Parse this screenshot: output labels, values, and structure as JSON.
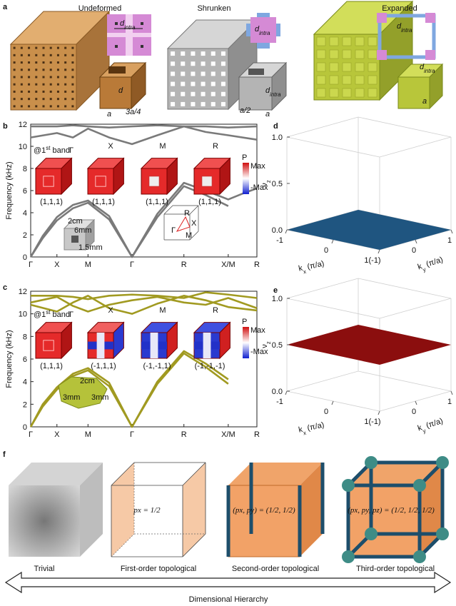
{
  "panel_letters": [
    "a",
    "b",
    "c",
    "d",
    "e",
    "f"
  ],
  "panel_a": [
    {
      "title": "Undeformed",
      "inset_label": {
        "base": "d",
        "sub": "intra"
      },
      "dims": [
        {
          "base": "d"
        },
        {
          "base": "a"
        },
        {
          "base": "3a/4"
        }
      ]
    },
    {
      "title": "Shrunken",
      "inset_label": {
        "base": "d",
        "sub": "intra"
      },
      "dims": [
        {
          "base": "d",
          "sub": "intra"
        },
        {
          "base": "a/2"
        },
        {
          "base": "a"
        }
      ]
    },
    {
      "title": "Expanded",
      "inset_label": {
        "base": "d",
        "sub": "intra"
      },
      "dims": [
        {
          "base": "d",
          "sub": "intra"
        },
        {
          "base": "a"
        }
      ]
    }
  ],
  "panel_b": {
    "band_label": {
      "base": "@1",
      "sup": "st",
      "rest": " band"
    },
    "modes": [
      {
        "point": "Γ",
        "index": "(1,1,1)"
      },
      {
        "point": "X",
        "index": "(1,1,1)"
      },
      {
        "point": "M",
        "index": "(1,1,1)"
      },
      {
        "point": "R",
        "index": "(1,1,1)"
      }
    ],
    "colorbar": {
      "title": "P",
      "max": "Max",
      "min": "-Max"
    },
    "sample": [
      "2cm",
      "6mm",
      "1.5mm"
    ],
    "brillouin_zone": [
      "R",
      "X",
      "M",
      "Γ"
    ]
  },
  "panel_c": {
    "band_label": {
      "base": "@1",
      "sup": "st",
      "rest": " band"
    },
    "modes": [
      {
        "point": "Γ",
        "index": "(1,1,1)"
      },
      {
        "point": "X",
        "index": "(-1,1,1)"
      },
      {
        "point": "M",
        "index": "(-1,-1,1)"
      },
      {
        "point": "R",
        "index": "(-1,-1,-1)"
      }
    ],
    "colorbar": {
      "title": "P",
      "max": "Max",
      "min": "-Max"
    },
    "sample": [
      "2cm",
      "3mm",
      "3mm"
    ]
  },
  "panel_f": {
    "cubes": [
      {
        "label": "Trivial"
      },
      {
        "label": "First-order topological",
        "equation": "px = 1/2"
      },
      {
        "label": "Second-order topological",
        "equation": "(px, py) = (1/2, 1/2)"
      },
      {
        "label": "Third-order topological",
        "equation": "(px, py, pz) = (1/2, 1/2, 1/2)"
      }
    ],
    "arrow_label": "Dimensional Hierarchy"
  },
  "chart_data": [
    {
      "type": "line",
      "ylabel": "Frequency (kHz)",
      "xlim": [
        0,
        7.5
      ],
      "ylim": [
        0,
        12
      ],
      "xticks": [
        {
          "value": 0,
          "label": "Γ"
        },
        {
          "value": 0.87,
          "label": "X"
        },
        {
          "value": 1.9,
          "label": "M"
        },
        {
          "value": 3.36,
          "label": "Γ"
        },
        {
          "value": 5.08,
          "label": "R"
        },
        {
          "value": 6.55,
          "label": "X/M"
        },
        {
          "value": 7.5,
          "label": "R"
        }
      ],
      "yticks": [
        0,
        2,
        4,
        6,
        8,
        10,
        12
      ],
      "series": [
        {
          "color": "#7a7a7a",
          "x": [
            0,
            0.4,
            0.87,
            1.4,
            1.9,
            2.6,
            3.36,
            4.2,
            5.08,
            5.8,
            6.55
          ],
          "values": [
            0,
            1.7,
            3.3,
            4.4,
            4.9,
            3.4,
            0,
            3.6,
            6.4,
            5.6,
            4.6
          ]
        },
        {
          "color": "#7a7a7a",
          "x": [
            0,
            0.4,
            0.87,
            1.4,
            1.9,
            2.6,
            3.36,
            4.2,
            5.08,
            5.8,
            6.55,
            7.0,
            7.5
          ],
          "values": [
            0,
            1.9,
            3.6,
            4.7,
            5.1,
            3.7,
            0,
            3.9,
            6.7,
            6.0,
            5.2,
            5.7,
            6.2
          ]
        },
        {
          "color": "#7a7a7a",
          "x": [
            0,
            0.87,
            1.4,
            1.9,
            2.6,
            3.36,
            4.2,
            5.08,
            5.8,
            6.55,
            7.5
          ],
          "values": [
            11.8,
            11.8,
            11.9,
            11.8,
            11.7,
            11.8,
            11.9,
            11.8,
            11.8,
            11.7,
            11.8
          ]
        },
        {
          "color": "#7a7a7a",
          "x": [
            0,
            0.87,
            1.4,
            1.9,
            2.6,
            3.36,
            4.2,
            5.08,
            5.8,
            6.55,
            7.5
          ],
          "values": [
            10.8,
            11.2,
            10.8,
            11.6,
            10.8,
            10.2,
            11.0,
            11.8,
            11.3,
            11.0,
            10.6
          ]
        }
      ]
    },
    {
      "type": "line",
      "ylabel": "Frequency (kHz)",
      "xlim": [
        0,
        7.5
      ],
      "ylim": [
        0,
        12
      ],
      "xticks": [
        {
          "value": 0,
          "label": "Γ"
        },
        {
          "value": 0.87,
          "label": "X"
        },
        {
          "value": 1.9,
          "label": "M"
        },
        {
          "value": 3.36,
          "label": "Γ"
        },
        {
          "value": 5.08,
          "label": "R"
        },
        {
          "value": 6.55,
          "label": "X/M"
        },
        {
          "value": 7.5,
          "label": "R"
        }
      ],
      "yticks": [
        0,
        2,
        4,
        6,
        8,
        10,
        12
      ],
      "series": [
        {
          "color": "#a19a21",
          "x": [
            0,
            0.4,
            0.87,
            1.4,
            1.9,
            2.6,
            3.36,
            4.2,
            5.08,
            5.8,
            6.55
          ],
          "values": [
            0,
            1.8,
            3.3,
            4.5,
            5.0,
            3.6,
            0,
            3.8,
            6.5,
            5.3,
            3.8
          ]
        },
        {
          "color": "#a19a21",
          "x": [
            0,
            0.4,
            0.87,
            1.4,
            1.9,
            2.6,
            3.36,
            4.2,
            5.08,
            5.8,
            6.55
          ],
          "values": [
            0,
            2.0,
            3.5,
            4.7,
            5.2,
            3.9,
            0,
            4.0,
            6.7,
            5.6,
            4.2
          ]
        },
        {
          "color": "#a19a21",
          "x": [
            0,
            0.87,
            1.4,
            1.9,
            2.6,
            3.36,
            4.2,
            5.08,
            5.8,
            6.55,
            7.5
          ],
          "values": [
            11.6,
            11.6,
            11.5,
            11.3,
            11.6,
            11.7,
            11.6,
            11.4,
            11.9,
            11.7,
            11.4
          ]
        },
        {
          "color": "#a19a21",
          "x": [
            0,
            0.87,
            1.4,
            1.9,
            2.6,
            3.36,
            4.2,
            5.08,
            5.8,
            6.55,
            7.5
          ],
          "values": [
            11.0,
            11.5,
            10.7,
            10.2,
            10.8,
            11.2,
            11.5,
            11.0,
            10.8,
            11.4,
            10.5
          ]
        },
        {
          "color": "#a19a21",
          "x": [
            0,
            0.87,
            1.4,
            1.9,
            2.6,
            3.36,
            4.2,
            5.08,
            5.8,
            6.55,
            7.5
          ],
          "values": [
            10.8,
            10.2,
            11.0,
            11.6,
            10.5,
            10.0,
            10.9,
            11.6,
            11.2,
            10.6,
            10.3
          ]
        }
      ]
    },
    {
      "type": "plane3d",
      "xlabel": {
        "base": "k",
        "sub": "x",
        "rest": " (π/a)"
      },
      "ylabel": {
        "base": "k",
        "sub": "y",
        "rest": " (π/a)"
      },
      "zlabel": {
        "base": "ν",
        "sub": "z"
      },
      "xlim": [
        -1,
        1
      ],
      "ylim": [
        -1,
        1
      ],
      "zlim": [
        0,
        1
      ],
      "xticks": [
        -1,
        0,
        {
          "value": 1,
          "label": "1(-1)"
        }
      ],
      "yticks": [
        0,
        1
      ],
      "zticks": [
        {
          "value": 0,
          "label": "0.0"
        },
        0.5,
        {
          "value": 1,
          "label": "1.0"
        }
      ],
      "plane_value": 0,
      "plane_color": "#1f5580"
    },
    {
      "type": "plane3d",
      "xlabel": {
        "base": "k",
        "sub": "x",
        "rest": " (π/a)"
      },
      "ylabel": {
        "base": "k",
        "sub": "y",
        "rest": " (π/a)"
      },
      "zlabel": {
        "base": "ν",
        "sub": "z"
      },
      "xlim": [
        -1,
        1
      ],
      "ylim": [
        -1,
        1
      ],
      "zlim": [
        0,
        1
      ],
      "xticks": [
        -1,
        0,
        {
          "value": 1,
          "label": "1(-1)"
        }
      ],
      "yticks": [
        0,
        1
      ],
      "zticks": [
        {
          "value": 0,
          "label": "0.0"
        },
        0.5,
        {
          "value": 1,
          "label": "1.0"
        }
      ],
      "plane_value": 0.5,
      "plane_color": "#8b0e0e"
    }
  ]
}
